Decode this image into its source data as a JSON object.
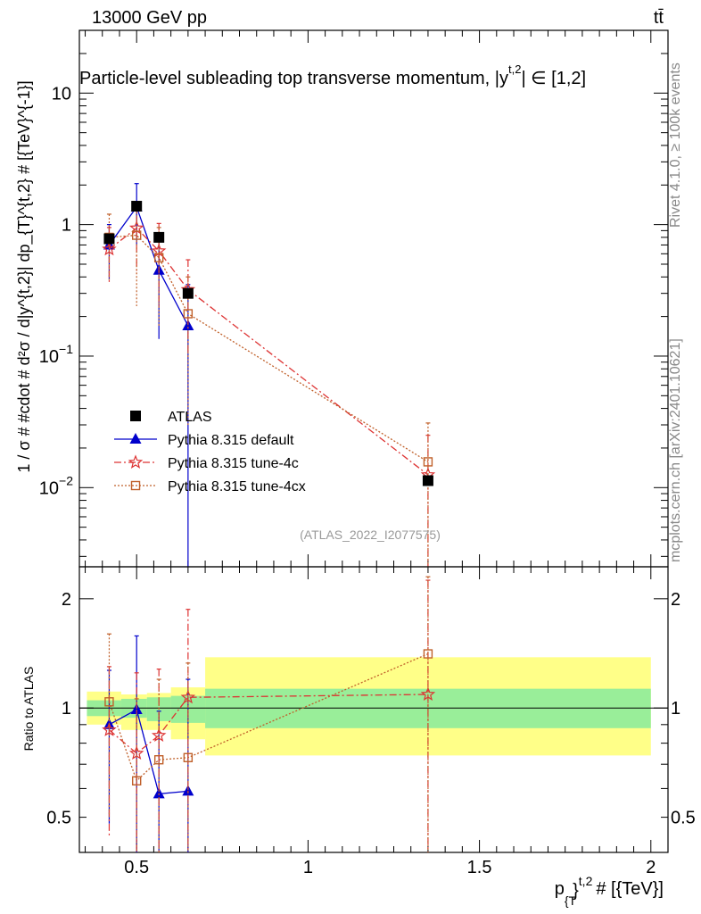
{
  "header": {
    "energy_label": "13000 GeV pp",
    "process_label": "tt̄"
  },
  "side_labels": {
    "rivet": "Rivet 4.1.0, ≥ 100k events",
    "mcplots": "mcplots.cern.ch [arXiv:2401.10621]"
  },
  "chart_data": [
    {
      "type": "scatter",
      "panel": "main",
      "title": "Particle-level subleading top transverse momentum, |y",
      "title_sup": "t,2",
      "title_end": "| ∈ [1,2]",
      "watermark": "(ATLAS_2022_I2077575)",
      "ylabel": "1 / σ # #cdot # d²σ / d|y^{t,2}| dp_{T}^{t,2} # [{TeV}^{-1}]",
      "yscale": "log",
      "ylim": [
        0.0025,
        30
      ],
      "xlim": [
        0.333,
        2.05
      ],
      "y_ticks": [
        {
          "value": 10,
          "label": "10"
        },
        {
          "value": 1,
          "label": "1"
        },
        {
          "value": 0.1,
          "label_base": "10",
          "label_exp": "−1"
        },
        {
          "value": 0.01,
          "label_base": "10",
          "label_exp": "−2"
        }
      ],
      "legend": [
        "ATLAS",
        "Pythia 8.315 default",
        "Pythia 8.315 tune-4c",
        "Pythia 8.315 tune-4cx"
      ],
      "series": [
        {
          "name": "ATLAS",
          "color": "#000000",
          "marker": "square",
          "x": [
            0.42,
            0.5,
            0.565,
            0.65,
            1.35
          ],
          "y": [
            0.78,
            1.38,
            0.8,
            0.3,
            0.0113
          ],
          "y_low": [
            0.76,
            1.35,
            0.78,
            0.29,
            0.0108
          ],
          "y_high": [
            0.8,
            1.41,
            0.82,
            0.31,
            0.0118
          ]
        },
        {
          "name": "Pythia 8.315 default",
          "color": "#0000cc",
          "marker": "triangle",
          "dash": "",
          "x": [
            0.42,
            0.5,
            0.565,
            0.65
          ],
          "y": [
            0.7,
            1.36,
            0.45,
            0.17
          ],
          "y_low": [
            0.38,
            0.7,
            0.135,
            0.001
          ],
          "y_high": [
            1.0,
            2.05,
            0.77,
            0.35
          ]
        },
        {
          "name": "Pythia 8.315 tune-4c",
          "color": "#dd3333",
          "marker": "star",
          "dash": "8,3,2,3",
          "x": [
            0.42,
            0.5,
            0.565,
            0.65,
            1.35
          ],
          "y": [
            0.65,
            0.94,
            0.63,
            0.32,
            0.0125
          ],
          "y_low": [
            0.36,
            0.42,
            0.24,
            0.095,
            0.001
          ],
          "y_high": [
            0.95,
            1.48,
            1.02,
            0.54,
            0.025
          ]
        },
        {
          "name": "Pythia 8.315 tune-4cx",
          "color": "#c0602a",
          "marker": "open-square",
          "dash": "2,2",
          "x": [
            0.42,
            0.5,
            0.565,
            0.65,
            1.35
          ],
          "y": [
            0.8,
            0.83,
            0.56,
            0.21,
            0.0157
          ],
          "y_low": [
            0.38,
            0.24,
            0.17,
            0.03,
            0.001
          ],
          "y_high": [
            1.2,
            1.42,
            0.95,
            0.4,
            0.031
          ]
        }
      ]
    },
    {
      "type": "scatter",
      "panel": "ratio",
      "ylabel": "Ratio to ATLAS",
      "xlabel": "p_{T}^{t,2} # [{TeV}]",
      "xlabel_main": "p",
      "xlabel_sub": "{T",
      "xlabel_sup": "t,2",
      "xlabel_end": "# [{TeV}]",
      "yscale": "log",
      "ylim": [
        0.4,
        2.45
      ],
      "xlim": [
        0.333,
        2.05
      ],
      "x_ticks": [
        {
          "value": 0.5,
          "label": "0.5"
        },
        {
          "value": 1,
          "label": "1"
        },
        {
          "value": 1.5,
          "label": "1.5"
        },
        {
          "value": 2,
          "label": "2"
        }
      ],
      "y_ticks": [
        {
          "value": 0.5,
          "label": "0.5"
        },
        {
          "value": 1,
          "label": "1"
        },
        {
          "value": 2,
          "label": "2"
        }
      ],
      "bands": [
        {
          "x0": 0.355,
          "x1": 0.455,
          "inner": [
            0.95,
            1.05
          ],
          "outer": [
            0.9,
            1.11
          ]
        },
        {
          "x0": 0.455,
          "x1": 0.53,
          "inner": [
            0.94,
            1.06
          ],
          "outer": [
            0.87,
            1.09
          ]
        },
        {
          "x0": 0.53,
          "x1": 0.6,
          "inner": [
            0.92,
            1.07
          ],
          "outer": [
            0.87,
            1.1
          ]
        },
        {
          "x0": 0.6,
          "x1": 0.7,
          "inner": [
            0.91,
            1.08
          ],
          "outer": [
            0.82,
            1.14
          ]
        },
        {
          "x0": 0.7,
          "x1": 2.0,
          "inner": [
            0.88,
            1.13
          ],
          "outer": [
            0.74,
            1.38
          ]
        }
      ],
      "series": [
        {
          "name": "Pythia 8.315 default",
          "color": "#0000cc",
          "marker": "triangle",
          "dash": "",
          "x": [
            0.42,
            0.5,
            0.565,
            0.65
          ],
          "y": [
            0.9,
            0.99,
            0.58,
            0.59
          ],
          "y_low": [
            0.48,
            0.4,
            0.3,
            0.3
          ],
          "y_high": [
            1.27,
            1.58,
            0.98,
            1.2
          ]
        },
        {
          "name": "Pythia 8.315 tune-4c",
          "color": "#dd3333",
          "marker": "star",
          "dash": "8,3,2,3",
          "x": [
            0.42,
            0.5,
            0.565,
            0.65,
            1.35
          ],
          "y": [
            0.87,
            0.75,
            0.84,
            1.07,
            1.09
          ],
          "y_low": [
            0.44,
            0.3,
            0.3,
            0.3,
            0.3
          ],
          "y_high": [
            1.3,
            1.25,
            1.28,
            1.87,
            2.25
          ]
        },
        {
          "name": "Pythia 8.315 tune-4cx",
          "color": "#c0602a",
          "marker": "open-square",
          "dash": "2,2",
          "x": [
            0.42,
            0.5,
            0.565,
            0.65,
            1.35
          ],
          "y": [
            1.04,
            0.63,
            0.72,
            0.73,
            1.41
          ],
          "y_low": [
            0.5,
            0.22,
            0.22,
            0.13,
            0.3
          ],
          "y_high": [
            1.6,
            1.06,
            1.2,
            1.33,
            2.3
          ]
        }
      ]
    }
  ]
}
